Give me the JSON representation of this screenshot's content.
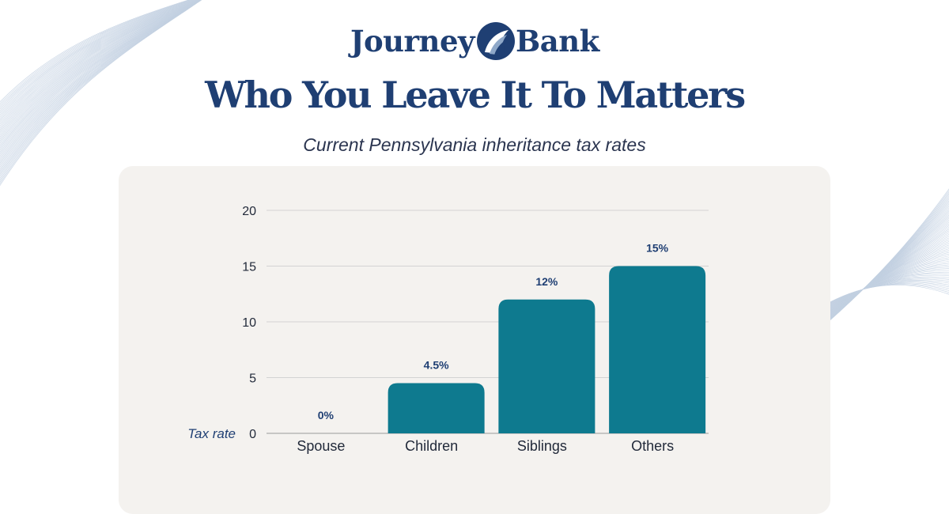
{
  "brand": {
    "name_left": "Journey",
    "name_right": "Bank",
    "color": "#1f3f73",
    "accent": "#0e7a8f"
  },
  "headline": "Who You Leave It To Matters",
  "subtitle": "Current Pennsylvania inheritance tax rates",
  "chart_data": {
    "type": "bar",
    "categories": [
      "Spouse",
      "Children",
      "Siblings",
      "Others"
    ],
    "values": [
      0,
      4.5,
      12,
      15
    ],
    "data_labels": [
      "0%",
      "4.5%",
      "12%",
      "15%"
    ],
    "ylabel": "Tax rate",
    "ylim": [
      0,
      20
    ],
    "yticks": [
      0,
      5,
      10,
      15,
      20
    ],
    "grid": true,
    "bar_color": "#0e7a8f"
  }
}
